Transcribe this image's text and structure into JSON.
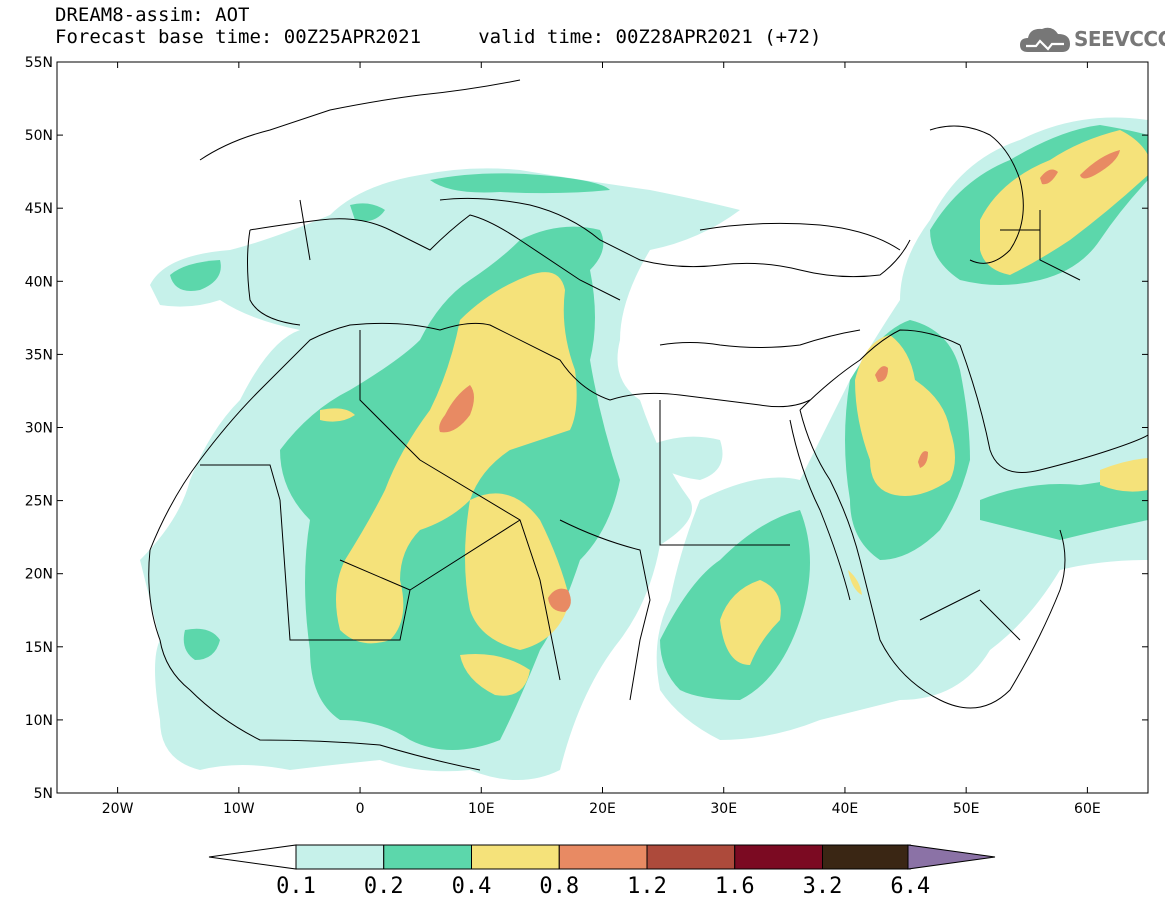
{
  "header": {
    "title_line1": "DREAM8-assim: AOT",
    "title_line2": "Forecast base time: 00Z25APR2021     valid time: 00Z28APR2021 (+72)"
  },
  "logo": {
    "text": "SEEVCCC",
    "icon": "cloud-icon"
  },
  "map": {
    "lat_range": [
      5,
      55
    ],
    "lon_range": [
      -25,
      65
    ],
    "lat_ticks": [
      {
        "value": 5,
        "label": "5N"
      },
      {
        "value": 10,
        "label": "10N"
      },
      {
        "value": 15,
        "label": "15N"
      },
      {
        "value": 20,
        "label": "20N"
      },
      {
        "value": 25,
        "label": "25N"
      },
      {
        "value": 30,
        "label": "30N"
      },
      {
        "value": 35,
        "label": "35N"
      },
      {
        "value": 40,
        "label": "40N"
      },
      {
        "value": 45,
        "label": "45N"
      },
      {
        "value": 50,
        "label": "50N"
      },
      {
        "value": 55,
        "label": "55N"
      }
    ],
    "lon_ticks": [
      {
        "value": -20,
        "label": "20W"
      },
      {
        "value": -10,
        "label": "10W"
      },
      {
        "value": 0,
        "label": "0"
      },
      {
        "value": 10,
        "label": "10E"
      },
      {
        "value": 20,
        "label": "20E"
      },
      {
        "value": 30,
        "label": "30E"
      },
      {
        "value": 40,
        "label": "40E"
      },
      {
        "value": 50,
        "label": "50E"
      },
      {
        "value": 60,
        "label": "60E"
      }
    ]
  },
  "colorbar": {
    "thresholds": [
      "0.1",
      "0.2",
      "0.4",
      "0.8",
      "1.2",
      "1.6",
      "3.2",
      "6.4"
    ],
    "colors": [
      "#ffffff",
      "#c6f1ea",
      "#5cd7ab",
      "#f5e27a",
      "#e88a63",
      "#ad4a3b",
      "#7b0a22",
      "#3a2614",
      "#8b72a6"
    ]
  }
}
